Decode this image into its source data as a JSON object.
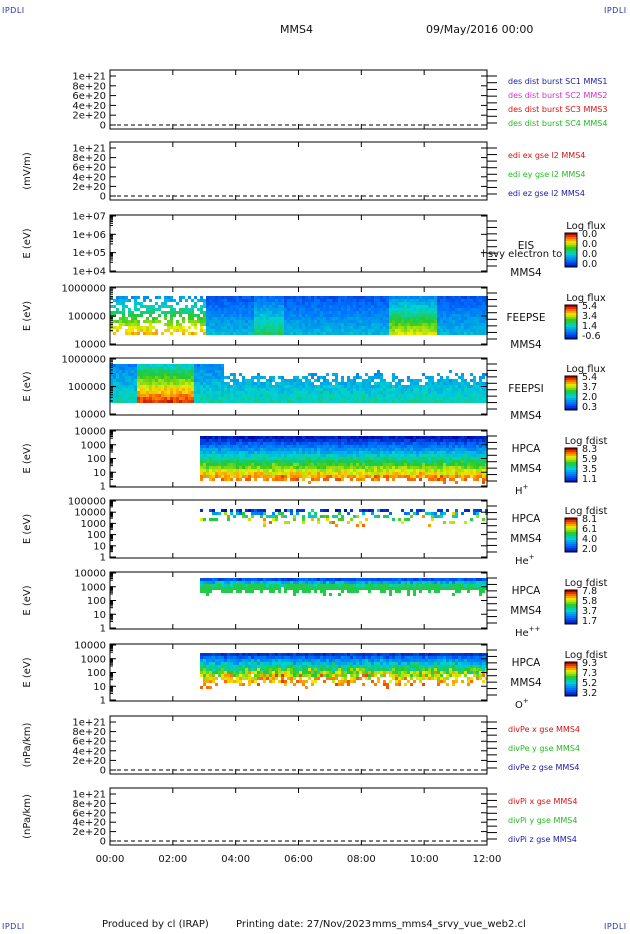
{
  "corners": [
    "IPDLI",
    "IPDLI",
    "IPDLI",
    "IPDLI"
  ],
  "header": {
    "spacecraft": "MMS4",
    "datetime": "09/May/2016 00:00"
  },
  "footer": {
    "produced_by": "Produced by cl (IRAP)",
    "printing_date": "Printing date: 27/Nov/2023",
    "file": "mms_mms4_srvy_vue_web2.cl"
  },
  "chart_data": {
    "type": "multi-panel time series / spectrogram stack",
    "x_axis": {
      "range": [
        "00:00",
        "12:00"
      ],
      "ticks": [
        "00:00",
        "02:00",
        "04:00",
        "06:00",
        "08:00",
        "10:00",
        "12:00"
      ]
    },
    "panels": [
      {
        "type": "line",
        "ylabel": "",
        "yticks": [
          "1e+21",
          "8e+20",
          "6e+20",
          "4e+20",
          "2e+20",
          "0"
        ],
        "legend": [
          {
            "text": "des dist burst SC1 MMS1",
            "color": "#1a1aa8"
          },
          {
            "text": "des dist burst SC2 MMS2",
            "color": "#cc33cc"
          },
          {
            "text": "des dist burst SC3 MMS3",
            "color": "#dd1111"
          },
          {
            "text": "des dist burst SC4 MMS4",
            "color": "#22bb22"
          }
        ]
      },
      {
        "type": "line",
        "ylabel": "(mV/m)",
        "yticks": [
          "1e+21",
          "8e+20",
          "6e+20",
          "4e+20",
          "2e+20",
          "0"
        ],
        "legend": [
          {
            "text": "edi ex gse l2 MMS4",
            "color": "#dd1111"
          },
          {
            "text": "edi ey gse l2 MMS4",
            "color": "#22bb22"
          },
          {
            "text": "edi ez gse l2 MMS4",
            "color": "#1a1aa8"
          }
        ]
      },
      {
        "type": "heatmap",
        "ylabel": "E (eV)",
        "yticks": [
          "1e+07",
          "1e+06",
          "1e+05",
          "1e+04"
        ],
        "right_labels": [
          "EIS",
          "MMS4"
        ],
        "overlay_text": "l svy electron to",
        "colorbar": {
          "title": "Log flux",
          "ticks": [
            "0.0",
            "0.0",
            "0.0",
            "0.0"
          ]
        }
      },
      {
        "type": "heatmap",
        "ylabel": "E (eV)",
        "yticks": [
          "1000000",
          "100000",
          "10000"
        ],
        "right_labels": [
          "FEEPSE",
          "MMS4"
        ],
        "colorbar": {
          "title": "Log flux",
          "ticks": [
            "5.4",
            "3.4",
            "1.4",
            "-0.6"
          ]
        }
      },
      {
        "type": "heatmap",
        "ylabel": "E (eV)",
        "yticks": [
          "1000000",
          "100000",
          "10000"
        ],
        "right_labels": [
          "FEEPSI",
          "MMS4"
        ],
        "colorbar": {
          "title": "Log flux",
          "ticks": [
            "5.4",
            "3.7",
            "2.0",
            "0.3"
          ]
        }
      },
      {
        "type": "heatmap",
        "ylabel": "E (eV)",
        "yticks": [
          "10000",
          "1000",
          "100",
          "10",
          "1"
        ],
        "right_labels": [
          "HPCA",
          "MMS4"
        ],
        "species": "H",
        "charge": "+",
        "colorbar": {
          "title": "Log fdist",
          "ticks": [
            "8.3",
            "5.9",
            "3.5",
            "1.1"
          ]
        }
      },
      {
        "type": "heatmap",
        "ylabel": "E (eV)",
        "yticks": [
          "100000",
          "10000",
          "1000",
          "100",
          "10",
          "1"
        ],
        "right_labels": [
          "HPCA",
          "MMS4"
        ],
        "species": "He",
        "charge": "+",
        "colorbar": {
          "title": "Log fdist",
          "ticks": [
            "8.1",
            "6.1",
            "4.0",
            "2.0"
          ]
        }
      },
      {
        "type": "heatmap",
        "ylabel": "E (eV)",
        "yticks": [
          "10000",
          "1000",
          "100",
          "10",
          "1"
        ],
        "right_labels": [
          "HPCA",
          "MMS4"
        ],
        "species": "He",
        "charge": "++",
        "colorbar": {
          "title": "Log fdist",
          "ticks": [
            "7.8",
            "5.8",
            "3.7",
            "1.7"
          ]
        }
      },
      {
        "type": "heatmap",
        "ylabel": "E (eV)",
        "yticks": [
          "10000",
          "1000",
          "100",
          "10",
          "1"
        ],
        "right_labels": [
          "HPCA",
          "MMS4"
        ],
        "species": "O",
        "charge": "+",
        "colorbar": {
          "title": "Log fdist",
          "ticks": [
            "9.3",
            "7.3",
            "5.2",
            "3.2"
          ]
        }
      },
      {
        "type": "line",
        "ylabel": "(nPa/km)",
        "yticks": [
          "1e+21",
          "8e+20",
          "6e+20",
          "4e+20",
          "2e+20",
          "0"
        ],
        "legend": [
          {
            "text": "divPe x gse MMS4",
            "color": "#dd1111"
          },
          {
            "text": "divPe y gse MMS4",
            "color": "#22bb22"
          },
          {
            "text": "divPe z gse MMS4",
            "color": "#1a1aa8"
          }
        ]
      },
      {
        "type": "line",
        "ylabel": "(nPa/km)",
        "yticks": [
          "1e+21",
          "8e+20",
          "6e+20",
          "4e+20",
          "2e+20",
          "0"
        ],
        "legend": [
          {
            "text": "divPi x gse MMS4",
            "color": "#dd1111"
          },
          {
            "text": "divPi y gse MMS4",
            "color": "#22bb22"
          },
          {
            "text": "divPi z gse MMS4",
            "color": "#1a1aa8"
          }
        ]
      }
    ]
  }
}
